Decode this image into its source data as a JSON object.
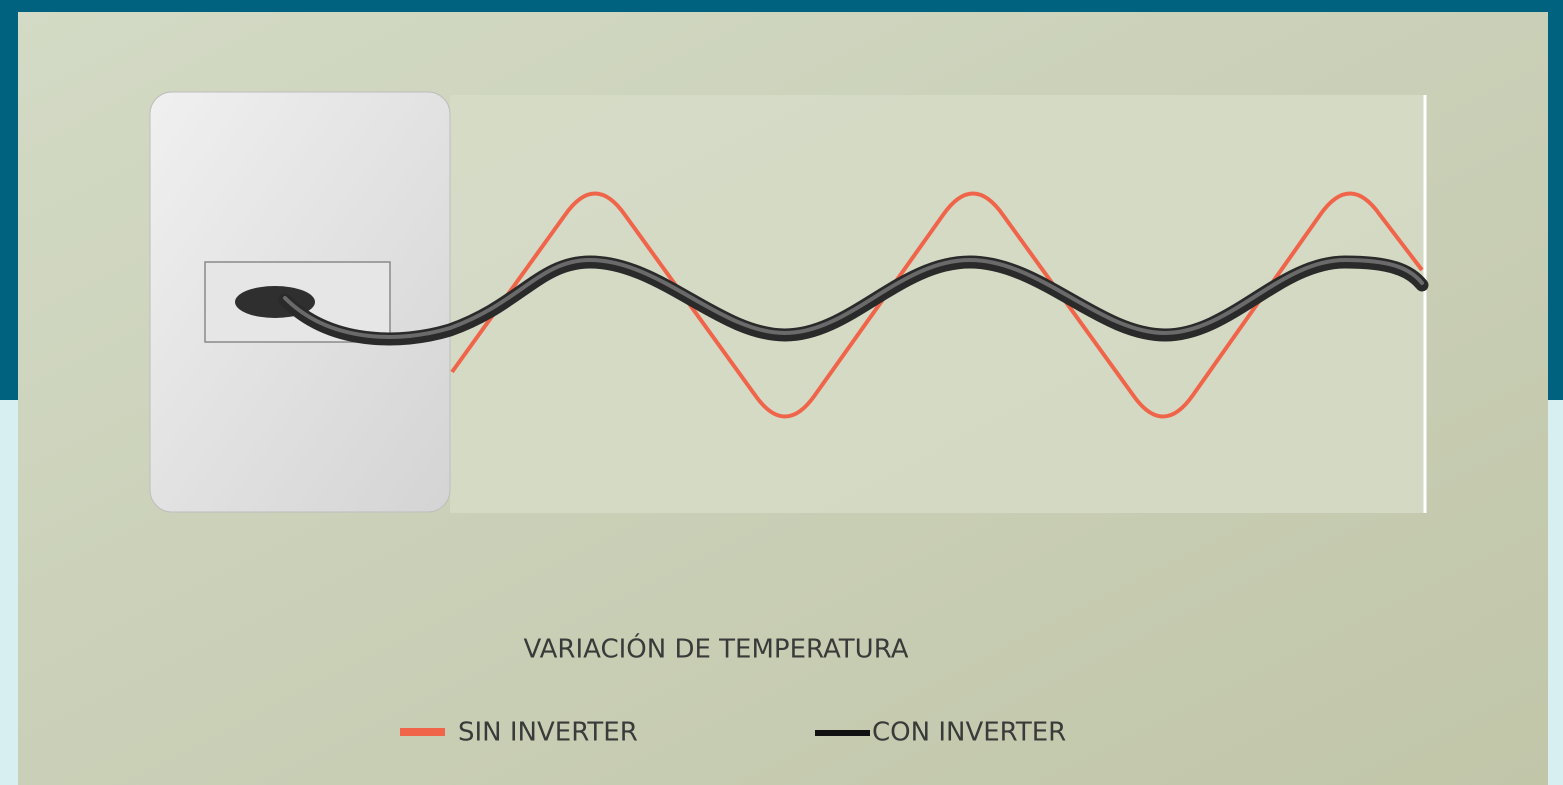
{
  "caption": "VARIACIÓN DE TEMPERATURA",
  "legend": [
    {
      "label": "SIN INVERTER",
      "color": "#f0654a"
    },
    {
      "label": "CON INVERTER",
      "color": "#111111"
    }
  ]
}
